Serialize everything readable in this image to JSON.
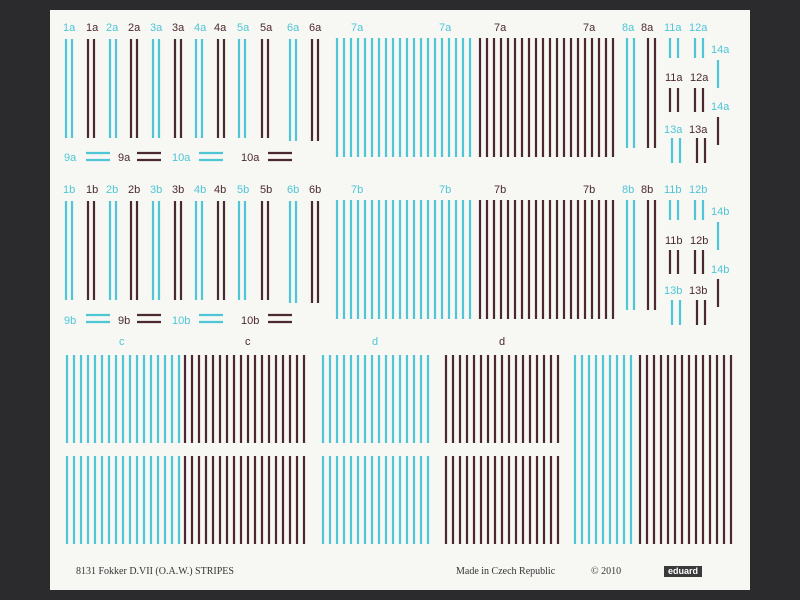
{
  "colors": {
    "cyan": "#4ec6d6",
    "brown": "#4a2a30",
    "paper": "#f7f7f4",
    "background": "#2b2b2d"
  },
  "labels": {
    "r1": [
      "1a",
      "1a",
      "2a",
      "2a",
      "3a",
      "3a",
      "4a",
      "4a",
      "5a",
      "5a",
      "6a",
      "6a",
      "7a",
      "7a",
      "7a",
      "7a",
      "8a",
      "8a",
      "11a",
      "12a"
    ],
    "r1_small": [
      "9a",
      "9a",
      "10a",
      "10a"
    ],
    "r1_right": [
      "14a",
      "11a",
      "12a",
      "14a",
      "13a",
      "13a"
    ],
    "r2": [
      "1b",
      "1b",
      "2b",
      "2b",
      "3b",
      "3b",
      "4b",
      "4b",
      "5b",
      "5b",
      "6b",
      "6b",
      "7b",
      "7b",
      "7b",
      "7b",
      "8b",
      "8b",
      "11b",
      "12b"
    ],
    "r2_small": [
      "9b",
      "9b",
      "10b",
      "10b"
    ],
    "r2_right": [
      "14b",
      "11b",
      "12b",
      "14b",
      "13b",
      "13b"
    ],
    "r3": [
      "c",
      "c",
      "d",
      "d"
    ]
  },
  "footer": {
    "title": "8131 Fokker D.VII (O.A.W.) STRIPES",
    "origin": "Made in Czech Republic",
    "copyright": "© 2010",
    "brand": "eduard"
  }
}
